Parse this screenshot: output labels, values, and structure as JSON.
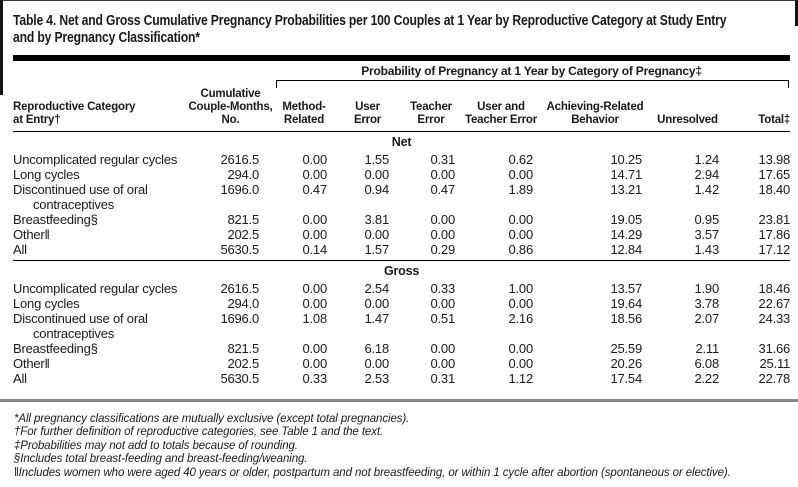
{
  "title_lines": [
    "Table 4. Net and Gross Cumulative Pregnancy Probabilities per 100 Couples at 1 Year by Reproductive Category at Study Entry",
    "and by Pregnancy Classification*"
  ],
  "table": {
    "col_group_header": "Probability of Pregnancy at 1 Year by Category of Pregnancy‡",
    "columns": [
      {
        "label": "Reproductive Category\nat Entry†"
      },
      {
        "label": "Cumulative\nCouple-Months,\nNo."
      },
      {
        "label": "Method-\nRelated"
      },
      {
        "label": "User\nError"
      },
      {
        "label": "Teacher\nError"
      },
      {
        "label": "User and\nTeacher Error"
      },
      {
        "label": "Achieving-Related\nBehavior"
      },
      {
        "label": "Unresolved"
      },
      {
        "label": "Total‡"
      }
    ],
    "sections": [
      {
        "name": "Net",
        "rows": [
          {
            "category": "Uncomplicated regular cycles",
            "values": [
              "2616.5",
              "0.00",
              "1.55",
              "0.31",
              "0.62",
              "10.25",
              "1.24",
              "13.98"
            ]
          },
          {
            "category": "Long cycles",
            "values": [
              "294.0",
              "0.00",
              "0.00",
              "0.00",
              "0.00",
              "14.71",
              "2.94",
              "17.65"
            ]
          },
          {
            "category": "Discontinued use of oral contraceptives",
            "values": [
              "1696.0",
              "0.47",
              "0.94",
              "0.47",
              "1.89",
              "13.21",
              "1.42",
              "18.40"
            ]
          },
          {
            "category": "Breastfeeding§",
            "values": [
              "821.5",
              "0.00",
              "3.81",
              "0.00",
              "0.00",
              "19.05",
              "0.95",
              "23.81"
            ]
          },
          {
            "category": "Other‖",
            "values": [
              "202.5",
              "0.00",
              "0.00",
              "0.00",
              "0.00",
              "14.29",
              "3.57",
              "17.86"
            ]
          },
          {
            "category": "All",
            "values": [
              "5630.5",
              "0.14",
              "1.57",
              "0.29",
              "0.86",
              "12.84",
              "1.43",
              "17.12"
            ]
          }
        ]
      },
      {
        "name": "Gross",
        "rows": [
          {
            "category": "Uncomplicated regular cycles",
            "values": [
              "2616.5",
              "0.00",
              "2.54",
              "0.33",
              "1.00",
              "13.57",
              "1.90",
              "18.46"
            ]
          },
          {
            "category": "Long cycles",
            "values": [
              "294.0",
              "0.00",
              "0.00",
              "0.00",
              "0.00",
              "19.64",
              "3.78",
              "22.67"
            ]
          },
          {
            "category": "Discontinued use of oral contraceptives",
            "values": [
              "1696.0",
              "1.08",
              "1.47",
              "0.51",
              "2.16",
              "18.56",
              "2.07",
              "24.33"
            ]
          },
          {
            "category": "Breastfeeding§",
            "values": [
              "821.5",
              "0.00",
              "6.18",
              "0.00",
              "0.00",
              "25.59",
              "2.11",
              "31.66"
            ]
          },
          {
            "category": "Other‖",
            "values": [
              "202.5",
              "0.00",
              "0.00",
              "0.00",
              "0.00",
              "20.26",
              "6.08",
              "25.11"
            ]
          },
          {
            "category": "All",
            "values": [
              "5630.5",
              "0.33",
              "2.53",
              "0.31",
              "1.12",
              "17.54",
              "2.22",
              "22.78"
            ]
          }
        ]
      }
    ]
  },
  "footnotes": [
    "*All pregnancy classifications are mutually exclusive (except total pregnancies).",
    "†For further definition of reproductive categories, see Table 1 and the text.",
    "‡Probabilities may not add to totals because of rounding.",
    "§Includes total breast-feeding and breast-feeding/weaning.",
    "‖Includes women who were aged 40 years or older, postpartum and not breastfeeding, or within 1 cycle after abortion (spontaneous or elective)."
  ],
  "colors": {
    "rule_black": "#000000",
    "rule_gray": "#878787",
    "text": "#1a1a1a"
  }
}
